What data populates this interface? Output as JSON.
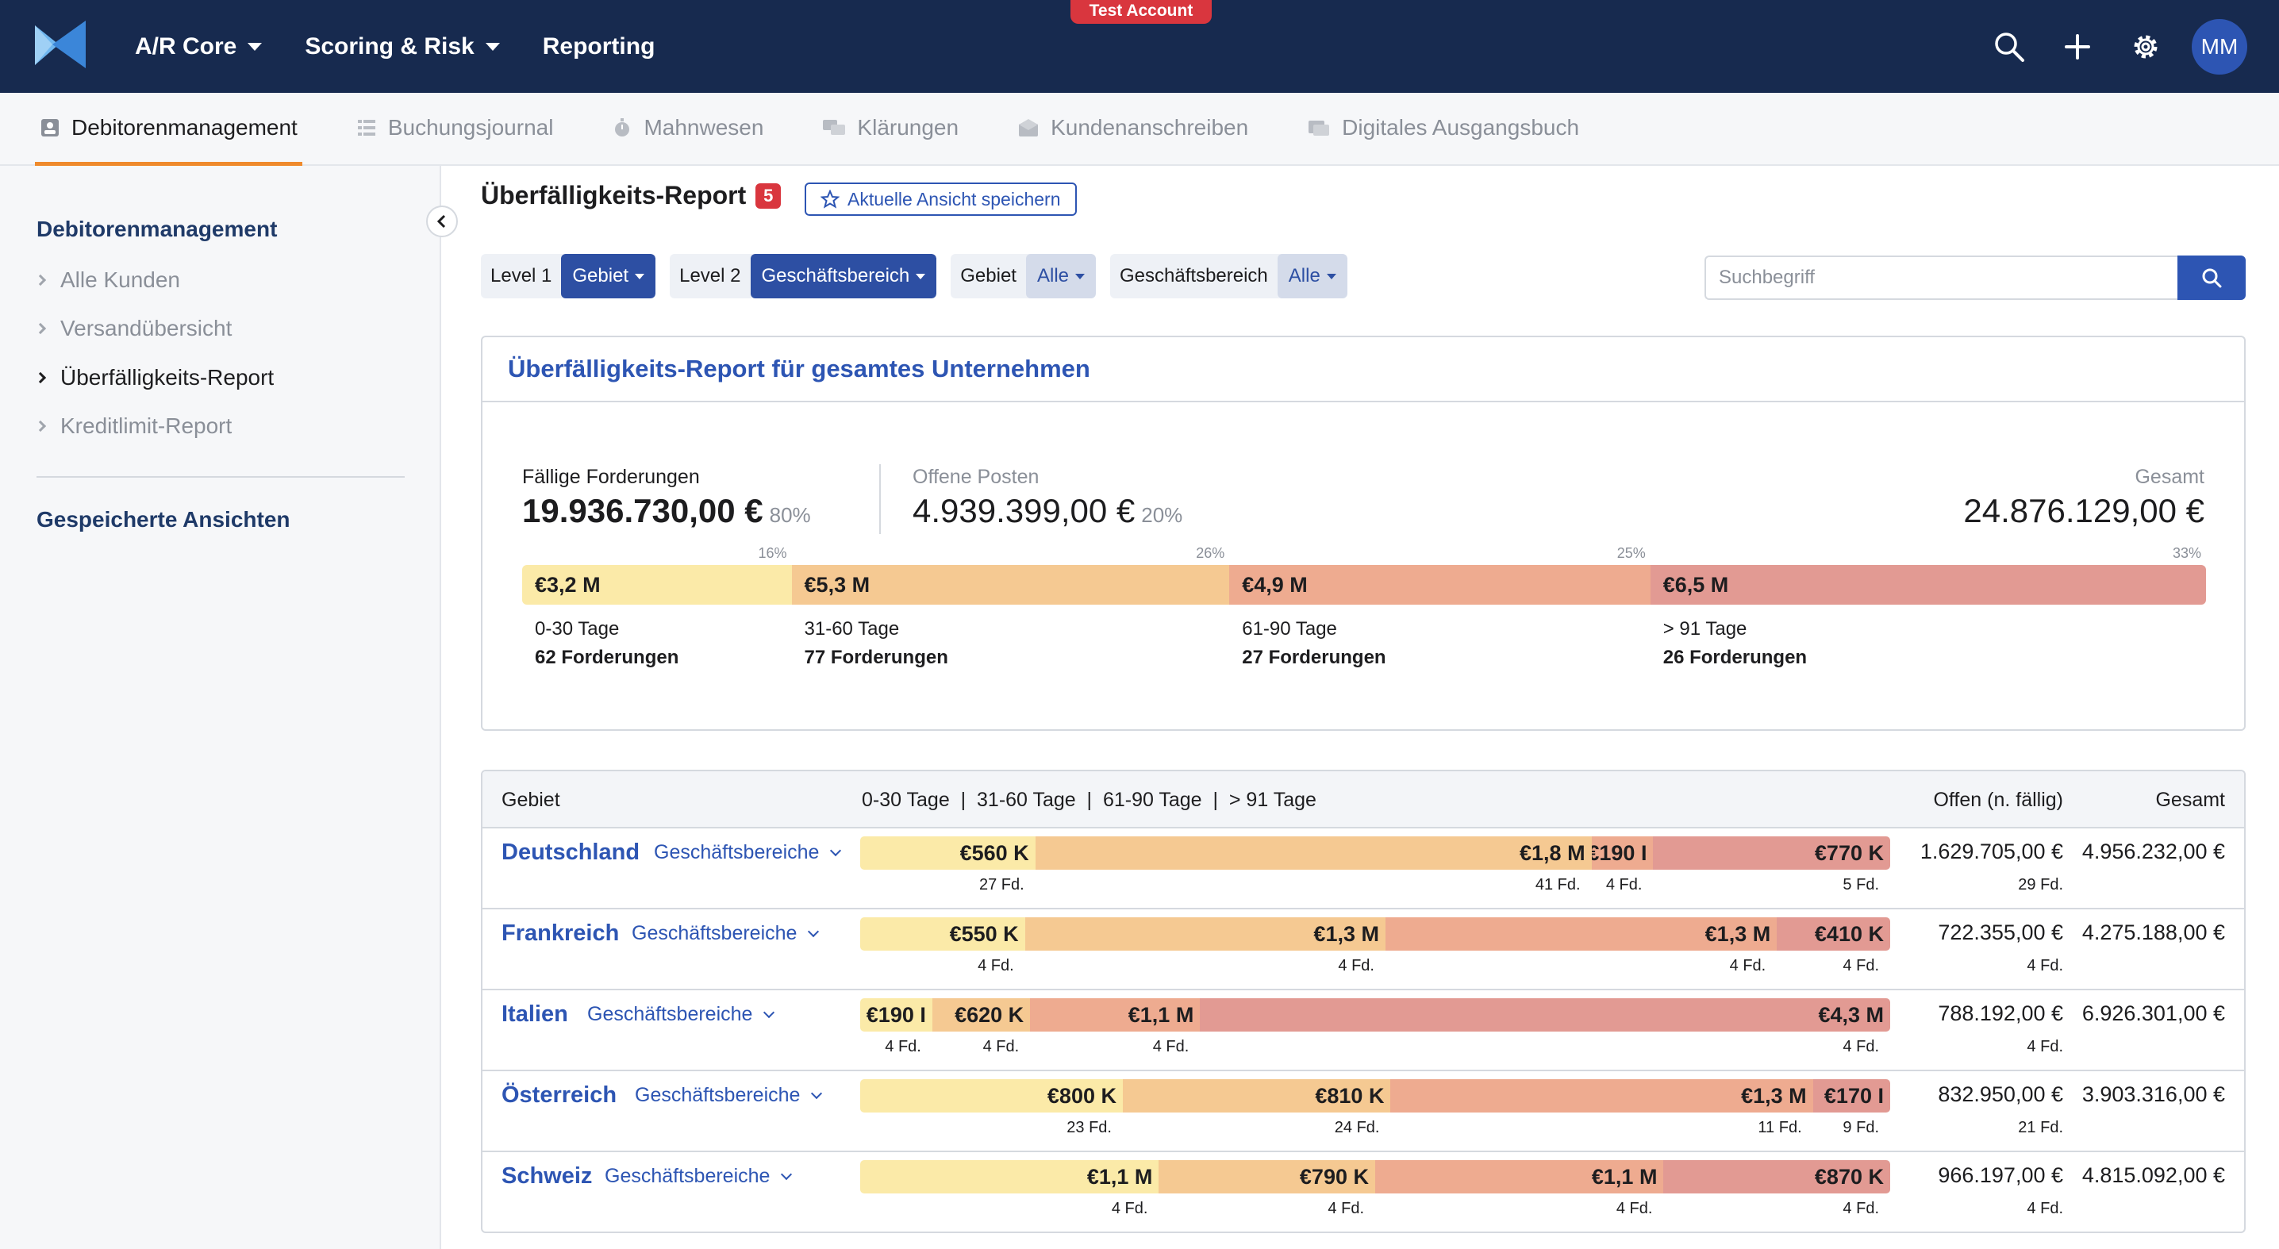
{
  "app": {
    "nav": [
      {
        "label": "A/R Core",
        "dropdown": true
      },
      {
        "label": "Scoring & Risk",
        "dropdown": true
      },
      {
        "label": "Reporting",
        "dropdown": false
      }
    ],
    "badge": "Test Account",
    "avatar_initials": "MM",
    "icons": [
      "search-icon",
      "plus-icon",
      "gear-icon"
    ]
  },
  "subnav": {
    "tabs": [
      {
        "label": "Debitorenmanagement",
        "icon": "person-card-icon",
        "active": true
      },
      {
        "label": "Buchungsjournal",
        "icon": "list-icon",
        "active": false
      },
      {
        "label": "Mahnwesen",
        "icon": "stopwatch-icon",
        "active": false
      },
      {
        "label": "Klärungen",
        "icon": "chat-icon",
        "active": false
      },
      {
        "label": "Kundenanschreiben",
        "icon": "envelope-icon",
        "active": false
      },
      {
        "label": "Digitales Ausgangsbuch",
        "icon": "inbox-icon",
        "active": false
      }
    ]
  },
  "sidebar": {
    "title": "Debitorenmanagement",
    "items": [
      {
        "label": "Alle Kunden",
        "active": false
      },
      {
        "label": "Versandübersicht",
        "active": false
      },
      {
        "label": "Überfälligkeits-Report",
        "active": true
      },
      {
        "label": "Kreditlimit-Report",
        "active": false
      }
    ],
    "saved_views": "Gespeicherte Ansichten"
  },
  "page": {
    "title": "Überfälligkeits-Report",
    "count": "5",
    "save_view": "Aktuelle Ansicht speichern"
  },
  "filters": [
    {
      "label": "Level 1",
      "value": "Gebiet",
      "style": "dark"
    },
    {
      "label": "Level 2",
      "value": "Geschäftsbereich",
      "style": "dark"
    },
    {
      "label": "Gebiet",
      "value": "Alle",
      "style": "light"
    },
    {
      "label": "Geschäftsbereich",
      "value": "Alle",
      "style": "light"
    }
  ],
  "search": {
    "placeholder": "Suchbegriff",
    "value": ""
  },
  "summary": {
    "header": "Überfälligkeits-Report für gesamtes Unternehmen",
    "due": {
      "label": "Fällige Forderungen",
      "value": "19.936.730,00 €",
      "pct": "80%"
    },
    "open": {
      "label": "Offene Posten",
      "value": "4.939.399,00 €",
      "pct": "20%"
    },
    "total": {
      "label": "Gesamt",
      "value": "24.876.129,00 €"
    },
    "buckets": [
      {
        "range": "0-30 Tage",
        "count": "62 Forderungen",
        "amount": "3,2 M",
        "pct": "16%",
        "share": 0.16,
        "color": "#fbeaa8"
      },
      {
        "range": "31-60 Tage",
        "count": "77 Forderungen",
        "amount": "5,3 M",
        "pct": "26%",
        "share": 0.26,
        "color": "#f5c992"
      },
      {
        "range": "61-90 Tage",
        "count": "27 Forderungen",
        "amount": "4,9 M",
        "pct": "25%",
        "share": 0.25,
        "color": "#eeab90"
      },
      {
        "range": "> 91 Tage",
        "count": "26 Forderungen",
        "amount": "6,5 M",
        "pct": "33%",
        "share": 0.33,
        "color": "#e29a93"
      }
    ]
  },
  "table": {
    "headers": {
      "gebiet": "Gebiet",
      "buckets": "0-30 Tage  |  31-60 Tage  |  61-90 Tage  |  > 91 Tage",
      "open": "Offen (n. fällig)",
      "total": "Gesamt"
    },
    "sublink": "Geschäftsbereiche",
    "rows": [
      {
        "name": "Deutschland",
        "segments": [
          {
            "amount": "€560 K",
            "fd": "27 Fd.",
            "share": 0.17
          },
          {
            "amount": "€1,8 M",
            "fd": "41 Fd.",
            "share": 0.54
          },
          {
            "amount": "€190 I",
            "fd": "4 Fd.",
            "share": 0.06
          },
          {
            "amount": "€770 K",
            "fd": "5 Fd.",
            "share": 0.23
          }
        ],
        "open": "1.629.705,00 €",
        "open_fd": "29 Fd.",
        "total": "4.956.232,00 €"
      },
      {
        "name": "Frankreich",
        "segments": [
          {
            "amount": "€550 K",
            "fd": "4 Fd.",
            "share": 0.16
          },
          {
            "amount": "€1,3 M",
            "fd": "4 Fd.",
            "share": 0.35
          },
          {
            "amount": "€1,3 M",
            "fd": "4 Fd.",
            "share": 0.38
          },
          {
            "amount": "€410 K",
            "fd": "4 Fd.",
            "share": 0.11
          }
        ],
        "open": "722.355,00 €",
        "open_fd": "4 Fd.",
        "total": "4.275.188,00 €"
      },
      {
        "name": "Italien",
        "segments": [
          {
            "amount": "€190 I",
            "fd": "4 Fd.",
            "share": 0.07
          },
          {
            "amount": "€620 K",
            "fd": "4 Fd.",
            "share": 0.095
          },
          {
            "amount": "€1,1 M",
            "fd": "4 Fd.",
            "share": 0.165
          },
          {
            "amount": "€4,3 M",
            "fd": "4 Fd.",
            "share": 0.67
          }
        ],
        "open": "788.192,00 €",
        "open_fd": "4 Fd.",
        "total": "6.926.301,00 €"
      },
      {
        "name": "Österreich",
        "segments": [
          {
            "amount": "€800 K",
            "fd": "23 Fd.",
            "share": 0.255
          },
          {
            "amount": "€810 K",
            "fd": "24 Fd.",
            "share": 0.26
          },
          {
            "amount": "€1,3 M",
            "fd": "11 Fd.",
            "share": 0.41
          },
          {
            "amount": "€170 I",
            "fd": "9 Fd.",
            "share": 0.075
          }
        ],
        "open": "832.950,00 €",
        "open_fd": "21 Fd.",
        "total": "3.903.316,00 €"
      },
      {
        "name": "Schweiz",
        "segments": [
          {
            "amount": "€1,1 M",
            "fd": "4 Fd.",
            "share": 0.29
          },
          {
            "amount": "€790 K",
            "fd": "4 Fd.",
            "share": 0.21
          },
          {
            "amount": "€1,1 M",
            "fd": "4 Fd.",
            "share": 0.28
          },
          {
            "amount": "€870 K",
            "fd": "4 Fd.",
            "share": 0.22
          }
        ],
        "open": "966.197,00 €",
        "open_fd": "4 Fd.",
        "total": "4.815.092,00 €"
      }
    ]
  }
}
